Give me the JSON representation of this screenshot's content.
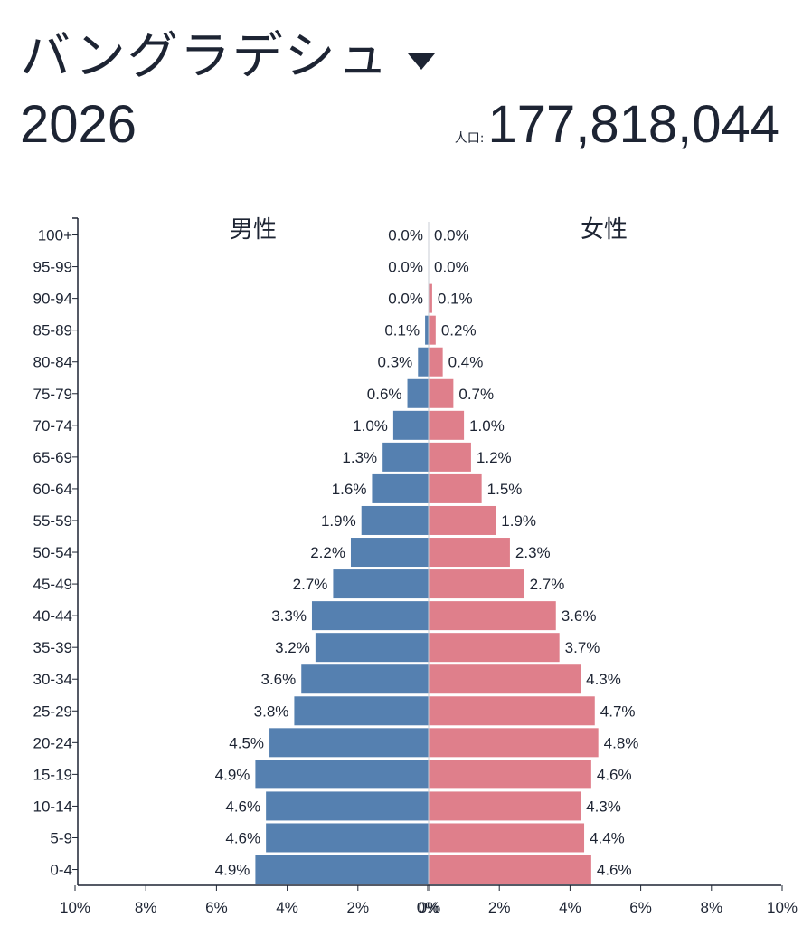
{
  "header": {
    "country": "バングラデシュ",
    "year": "2026",
    "population_label": "人口:",
    "population": "177,818,044"
  },
  "colors": {
    "male": "#5580b0",
    "female": "#df7f8b",
    "axis": "#1d2433"
  },
  "chart_data": {
    "type": "bar",
    "title": "",
    "xlabel": "",
    "ylabel": "",
    "categories": [
      "100+",
      "95-99",
      "90-94",
      "85-89",
      "80-84",
      "75-79",
      "70-74",
      "65-69",
      "60-64",
      "55-59",
      "50-54",
      "45-49",
      "40-44",
      "35-39",
      "30-34",
      "25-29",
      "20-24",
      "15-19",
      "10-14",
      "5-9",
      "0-4"
    ],
    "series": [
      {
        "name": "男性",
        "values": [
          0.0,
          0.0,
          0.0,
          0.1,
          0.3,
          0.6,
          1.0,
          1.3,
          1.6,
          1.9,
          2.2,
          2.7,
          3.3,
          3.2,
          3.6,
          3.8,
          4.5,
          4.9,
          4.6,
          4.6,
          4.9
        ],
        "labels": [
          "0.0%",
          "0.0%",
          "0.0%",
          "0.1%",
          "0.3%",
          "0.6%",
          "1.0%",
          "1.3%",
          "1.6%",
          "1.9%",
          "2.2%",
          "2.7%",
          "3.3%",
          "3.2%",
          "3.6%",
          "3.8%",
          "4.5%",
          "4.9%",
          "4.6%",
          "4.6%",
          "4.9%"
        ]
      },
      {
        "name": "女性",
        "values": [
          0.0,
          0.0,
          0.1,
          0.2,
          0.4,
          0.7,
          1.0,
          1.2,
          1.5,
          1.9,
          2.3,
          2.7,
          3.6,
          3.7,
          4.3,
          4.7,
          4.8,
          4.6,
          4.3,
          4.4,
          4.6
        ],
        "labels": [
          "0.0%",
          "0.0%",
          "0.1%",
          "0.2%",
          "0.4%",
          "0.7%",
          "1.0%",
          "1.2%",
          "1.5%",
          "1.9%",
          "2.3%",
          "2.7%",
          "3.6%",
          "3.7%",
          "4.3%",
          "4.7%",
          "4.8%",
          "4.6%",
          "4.3%",
          "4.4%",
          "4.6%"
        ]
      }
    ],
    "xlim": [
      0,
      10
    ],
    "xticks": [
      "10%",
      "8%",
      "6%",
      "4%",
      "2%",
      "0%",
      "0%",
      "2%",
      "4%",
      "6%",
      "8%",
      "10%"
    ],
    "grid": false
  }
}
